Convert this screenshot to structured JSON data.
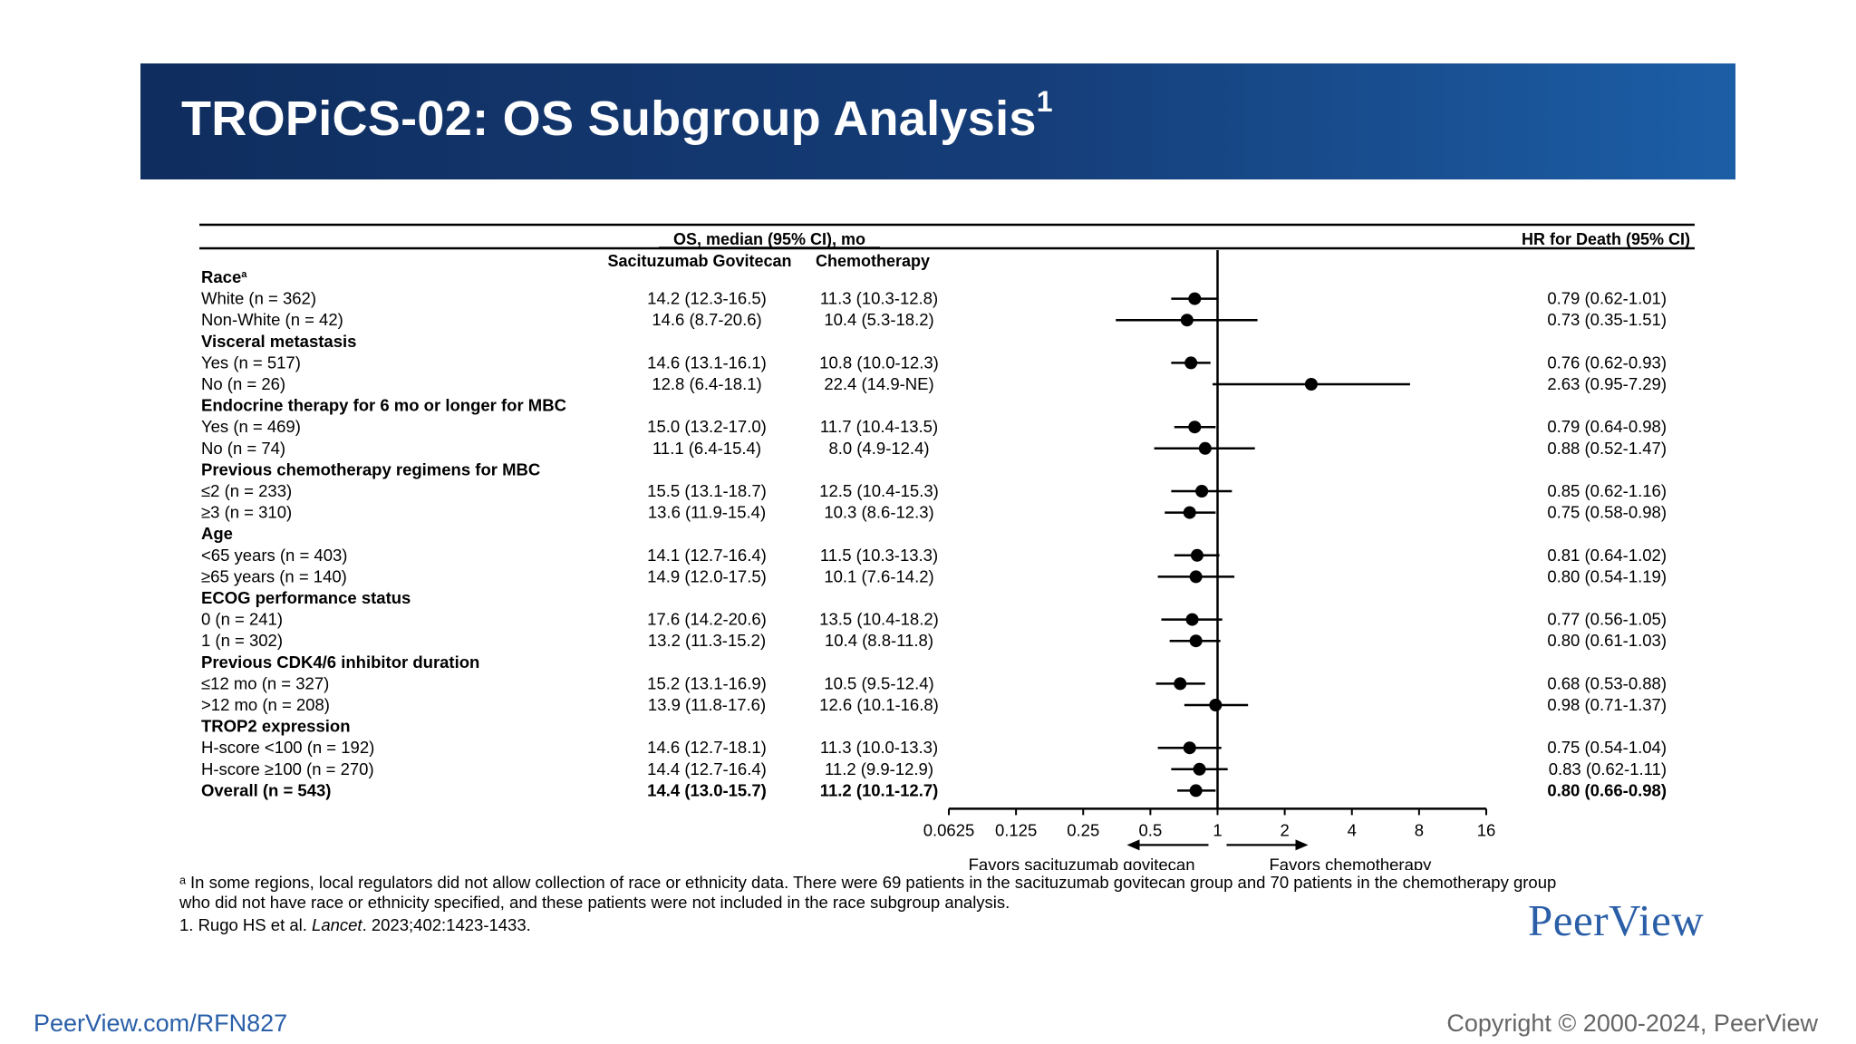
{
  "header": {
    "title": "TROPiCS-02: OS Subgroup Analysis",
    "title_superscript": "1",
    "bg_color_dark": "#0f2d5e",
    "bg_color_light": "#1c5ea6"
  },
  "table_headers": {
    "os_median": "OS, median (95% CI), mo",
    "hr": "HR for Death (95% CI)",
    "col_sg": "Sacituzumab Govitecan",
    "col_chemo": "Chemotherapy"
  },
  "chart_data": {
    "type": "forest",
    "title": "TROPiCS-02: OS Subgroup Analysis",
    "x_scale": "log2",
    "xlim": [
      0.0625,
      16
    ],
    "ref_line": 1,
    "x_ticks": [
      0.0625,
      0.125,
      0.25,
      0.5,
      1,
      2,
      4,
      8,
      16
    ],
    "x_tick_labels": [
      "0.0625",
      "0.125",
      "0.25",
      "0.5",
      "1",
      "2",
      "4",
      "8",
      "16"
    ],
    "favors_left": "Favors sacituzumab govitecan",
    "favors_right": "Favors chemotherapy",
    "rows": [
      {
        "type": "group",
        "label": "Race",
        "sup": "a"
      },
      {
        "type": "item",
        "label": "White (n = 362)",
        "sg": "14.2 (12.3-16.5)",
        "chemo": "11.3 (10.3-12.8)",
        "hr_text": "0.79 (0.62-1.01)",
        "hr": 0.79,
        "lo": 0.62,
        "hi": 1.01
      },
      {
        "type": "item",
        "label": "Non-White (n = 42)",
        "sg": "14.6 (8.7-20.6)",
        "chemo": "10.4 (5.3-18.2)",
        "hr_text": "0.73 (0.35-1.51)",
        "hr": 0.73,
        "lo": 0.35,
        "hi": 1.51
      },
      {
        "type": "group",
        "label": "Visceral metastasis"
      },
      {
        "type": "item",
        "label": "Yes (n = 517)",
        "sg": "14.6 (13.1-16.1)",
        "chemo": "10.8 (10.0-12.3)",
        "hr_text": "0.76 (0.62-0.93)",
        "hr": 0.76,
        "lo": 0.62,
        "hi": 0.93
      },
      {
        "type": "item",
        "label": "No (n = 26)",
        "sg": "12.8 (6.4-18.1)",
        "chemo": "22.4 (14.9-NE)",
        "hr_text": "2.63 (0.95-7.29)",
        "hr": 2.63,
        "lo": 0.95,
        "hi": 7.29
      },
      {
        "type": "group",
        "label": "Endocrine therapy for 6 mo or longer for MBC"
      },
      {
        "type": "item",
        "label": "Yes (n = 469)",
        "sg": "15.0 (13.2-17.0)",
        "chemo": "11.7 (10.4-13.5)",
        "hr_text": "0.79 (0.64-0.98)",
        "hr": 0.79,
        "lo": 0.64,
        "hi": 0.98
      },
      {
        "type": "item",
        "label": "No (n = 74)",
        "sg": "11.1 (6.4-15.4)",
        "chemo": "8.0 (4.9-12.4)",
        "hr_text": "0.88 (0.52-1.47)",
        "hr": 0.88,
        "lo": 0.52,
        "hi": 1.47
      },
      {
        "type": "group",
        "label": "Previous chemotherapy regimens for MBC"
      },
      {
        "type": "item",
        "label": "≤2 (n = 233)",
        "sg": "15.5 (13.1-18.7)",
        "chemo": "12.5 (10.4-15.3)",
        "hr_text": "0.85 (0.62-1.16)",
        "hr": 0.85,
        "lo": 0.62,
        "hi": 1.16
      },
      {
        "type": "item",
        "label": "≥3 (n = 310)",
        "sg": "13.6 (11.9-15.4)",
        "chemo": "10.3 (8.6-12.3)",
        "hr_text": "0.75 (0.58-0.98)",
        "hr": 0.75,
        "lo": 0.58,
        "hi": 0.98
      },
      {
        "type": "group",
        "label": "Age"
      },
      {
        "type": "item",
        "label": "<65 years (n = 403)",
        "sg": "14.1 (12.7-16.4)",
        "chemo": "11.5 (10.3-13.3)",
        "hr_text": "0.81 (0.64-1.02)",
        "hr": 0.81,
        "lo": 0.64,
        "hi": 1.02
      },
      {
        "type": "item",
        "label": "≥65 years (n = 140)",
        "sg": "14.9 (12.0-17.5)",
        "chemo": "10.1 (7.6-14.2)",
        "hr_text": "0.80 (0.54-1.19)",
        "hr": 0.8,
        "lo": 0.54,
        "hi": 1.19
      },
      {
        "type": "group",
        "label": "ECOG performance status"
      },
      {
        "type": "item",
        "label": "0 (n = 241)",
        "sg": "17.6 (14.2-20.6)",
        "chemo": "13.5 (10.4-18.2)",
        "hr_text": "0.77 (0.56-1.05)",
        "hr": 0.77,
        "lo": 0.56,
        "hi": 1.05
      },
      {
        "type": "item",
        "label": "1 (n = 302)",
        "sg": "13.2 (11.3-15.2)",
        "chemo": "10.4 (8.8-11.8)",
        "hr_text": "0.80 (0.61-1.03)",
        "hr": 0.8,
        "lo": 0.61,
        "hi": 1.03
      },
      {
        "type": "group",
        "label": "Previous CDK4/6 inhibitor duration"
      },
      {
        "type": "item",
        "label": "≤12 mo (n = 327)",
        "sg": "15.2 (13.1-16.9)",
        "chemo": "10.5 (9.5-12.4)",
        "hr_text": "0.68 (0.53-0.88)",
        "hr": 0.68,
        "lo": 0.53,
        "hi": 0.88
      },
      {
        "type": "item",
        "label": ">12 mo (n = 208)",
        "sg": "13.9 (11.8-17.6)",
        "chemo": "12.6 (10.1-16.8)",
        "hr_text": "0.98 (0.71-1.37)",
        "hr": 0.98,
        "lo": 0.71,
        "hi": 1.37
      },
      {
        "type": "group",
        "label": "TROP2 expression"
      },
      {
        "type": "item",
        "label": "H-score <100 (n = 192)",
        "sg": "14.6 (12.7-18.1)",
        "chemo": "11.3 (10.0-13.3)",
        "hr_text": "0.75 (0.54-1.04)",
        "hr": 0.75,
        "lo": 0.54,
        "hi": 1.04
      },
      {
        "type": "item",
        "label": "H-score ≥100 (n = 270)",
        "sg": "14.4 (12.7-16.4)",
        "chemo": "11.2 (9.9-12.9)",
        "hr_text": "0.83 (0.62-1.11)",
        "hr": 0.83,
        "lo": 0.62,
        "hi": 1.11
      },
      {
        "type": "overall",
        "label": "Overall (n = 543)",
        "sg": "14.4 (13.0-15.7)",
        "chemo": "11.2 (10.1-12.7)",
        "hr_text": "0.80 (0.66-0.98)",
        "hr": 0.8,
        "lo": 0.66,
        "hi": 0.98
      }
    ]
  },
  "footnotes": {
    "line1": "ᵃ In some regions, local regulators did not allow collection of race or ethnicity data. There were 69 patients in the sacituzumab govitecan group and 70 patients in the chemotherapy group",
    "line2": "who did not have race or ethnicity specified, and these patients were not included in the race subgroup analysis.",
    "reference_pre": "1. Rugo HS et al. ",
    "reference_journal": "Lancet",
    "reference_post": ". 2023;402:1423-1433."
  },
  "footer": {
    "logo": "PeerView",
    "url": "PeerView.com/RFN827",
    "copyright": "Copyright © 2000-2024, PeerView",
    "link_color": "#2a5fa8"
  }
}
